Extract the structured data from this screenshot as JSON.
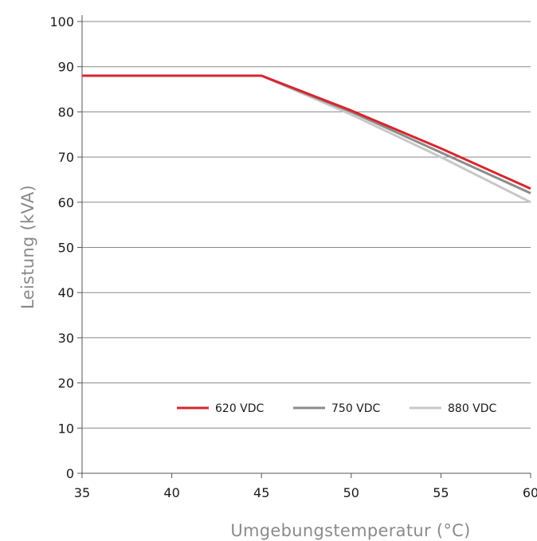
{
  "chart_data": {
    "type": "line",
    "title": "",
    "xlabel": "Umgebungstemperatur (°C)",
    "ylabel": "Leistung (kVA)",
    "xlim": [
      35,
      60
    ],
    "ylim": [
      0,
      100
    ],
    "xticks": [
      35,
      40,
      45,
      50,
      55,
      60
    ],
    "yticks": [
      0,
      10,
      20,
      30,
      40,
      50,
      60,
      70,
      80,
      90,
      100
    ],
    "grid": "horizontal",
    "legend_position": "bottom-center",
    "series": [
      {
        "name": "620 VDC",
        "color": "#d7262f",
        "x": [
          35,
          45,
          50,
          55,
          60
        ],
        "y": [
          88,
          88,
          80.3,
          71.9,
          63
        ]
      },
      {
        "name": "750 VDC",
        "color": "#8c8c8c",
        "x": [
          35,
          45,
          50,
          55,
          60
        ],
        "y": [
          88,
          88,
          80,
          71,
          62
        ]
      },
      {
        "name": "880 VDC",
        "color": "#c8c8c8",
        "x": [
          35,
          45,
          50,
          55,
          60
        ],
        "y": [
          88,
          88,
          79.4,
          70,
          60
        ]
      }
    ]
  }
}
